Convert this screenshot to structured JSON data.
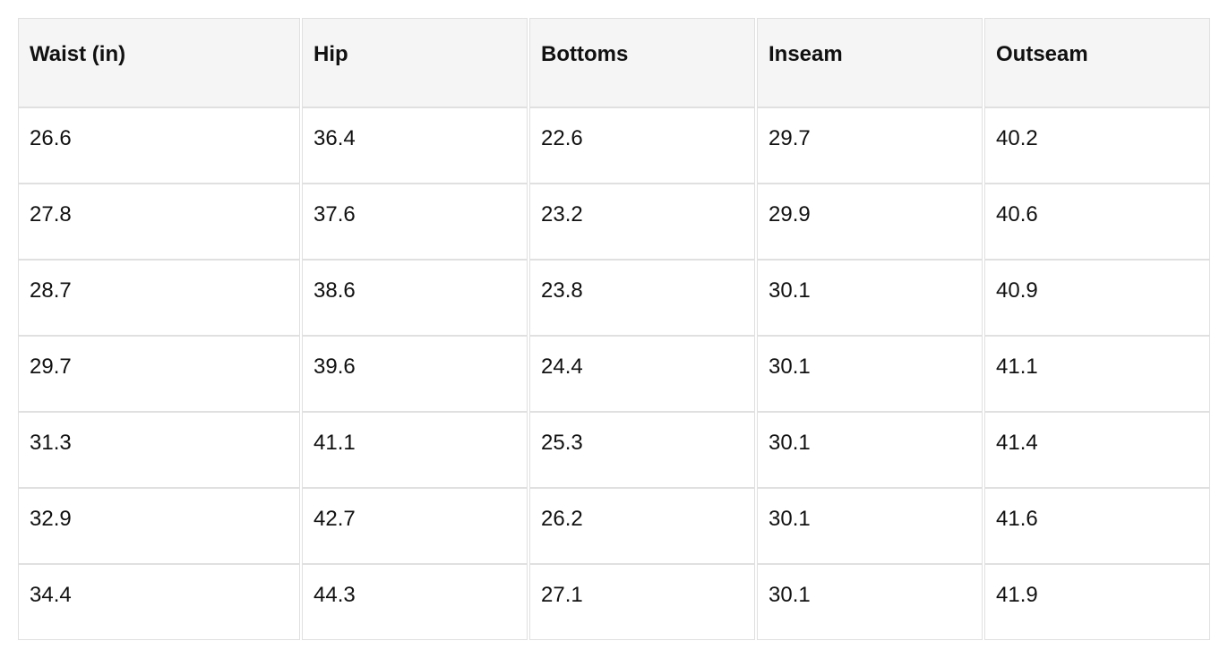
{
  "table": {
    "header": [
      "Waist (in)",
      "Hip",
      "Bottoms",
      "Inseam",
      "Outseam"
    ],
    "rows": [
      [
        "26.6",
        "36.4",
        "22.6",
        "29.7",
        "40.2"
      ],
      [
        "27.8",
        "37.6",
        "23.2",
        "29.9",
        "40.6"
      ],
      [
        "28.7",
        "38.6",
        "23.8",
        "30.1",
        "40.9"
      ],
      [
        "29.7",
        "39.6",
        "24.4",
        "30.1",
        "41.1"
      ],
      [
        "31.3",
        "41.1",
        "25.3",
        "30.1",
        "41.4"
      ],
      [
        "32.9",
        "42.7",
        "26.2",
        "30.1",
        "41.6"
      ],
      [
        "34.4",
        "44.3",
        "27.1",
        "30.1",
        "41.9"
      ]
    ]
  }
}
